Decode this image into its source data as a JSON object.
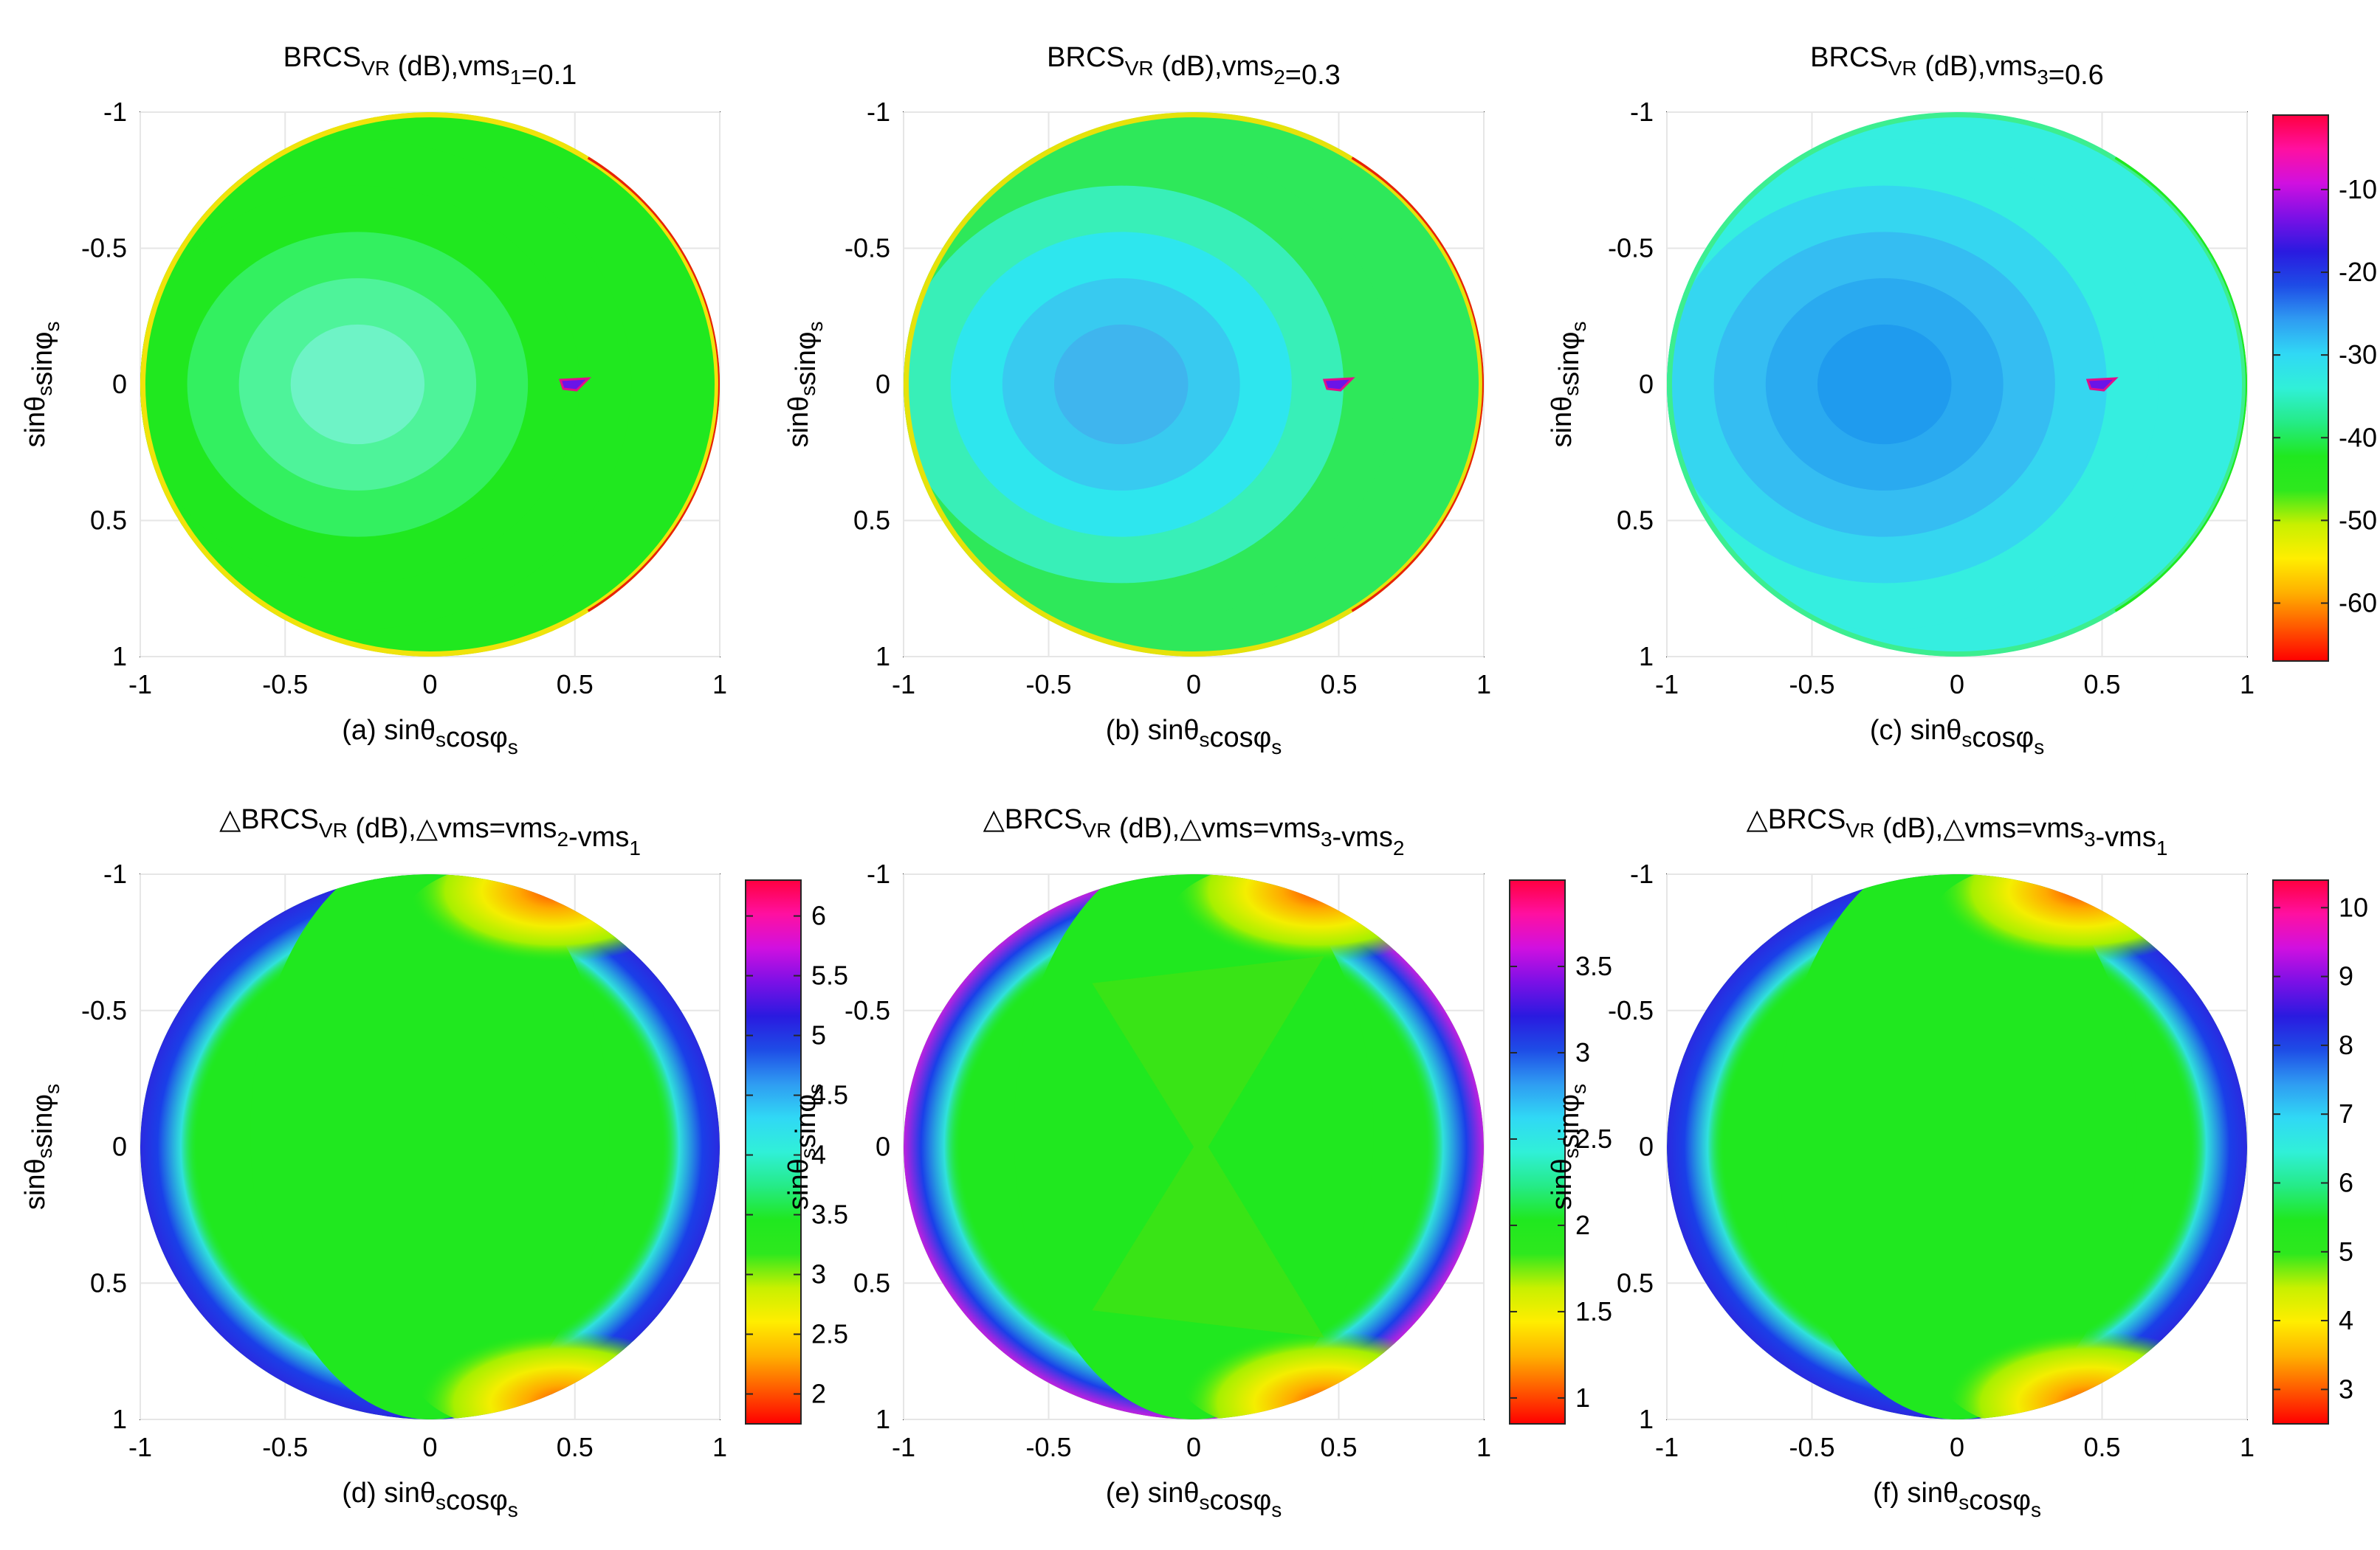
{
  "figure": {
    "axes_common": {
      "x_ticks": [
        "-1",
        "-0.5",
        "0",
        "0.5",
        "1"
      ],
      "y_ticks": [
        "-1",
        "-0.5",
        "0",
        "0.5",
        "1"
      ],
      "xlim": [
        -1,
        1
      ],
      "ylim": [
        -1,
        1
      ],
      "ylabel": "sinθ",
      "ylabel_sub1": "s",
      "ylabel_mid": "sinφ",
      "ylabel_sub2": "s",
      "xlabel_main": "sinθ",
      "xlabel_sub1": "s",
      "xlabel_mid": "cosφ",
      "xlabel_sub2": "s"
    }
  },
  "chart_data": [
    {
      "type": "heatmap",
      "id": "a",
      "title_pre": "BRCS",
      "title_sub": "VR",
      "title_mid": " (dB),vms",
      "title_sub2": "1",
      "title_post": "=0.1",
      "caption_letter": "(a)",
      "levels": [
        "#6ef3c6",
        "#4ef39a",
        "#33f060",
        "#20e81f",
        "#20e81f"
      ],
      "rim": [
        "#f0e30a",
        "#e8220a"
      ],
      "colorbar": null
    },
    {
      "type": "heatmap",
      "id": "b",
      "title_pre": "BRCS",
      "title_sub": "VR",
      "title_mid": " (dB),vms",
      "title_sub2": "2",
      "title_post": "=0.3",
      "caption_letter": "(b)",
      "levels": [
        "#3fb5ee",
        "#38caf0",
        "#2ee6ee",
        "#38efb8",
        "#2ee85a"
      ],
      "rim": [
        "#e6e20a",
        "#e8220a"
      ],
      "colorbar": null
    },
    {
      "type": "heatmap",
      "id": "c",
      "title_pre": "BRCS",
      "title_sub": "VR",
      "title_mid": " (dB),vms",
      "title_sub2": "3",
      "title_post": "=0.6",
      "caption_letter": "(c)",
      "levels": [
        "#1f9bee",
        "#2aaaf0",
        "#35bdf2",
        "#35d6f0",
        "#35eee0"
      ],
      "rim": [
        "#3cee90",
        "#20e81f"
      ],
      "colorbar": {
        "ticks": [
          "-10",
          "-20",
          "-30",
          "-40",
          "-50",
          "-60"
        ],
        "values": [
          -10,
          -20,
          -30,
          -40,
          -50,
          -60
        ],
        "range": [
          -67,
          -1
        ]
      }
    },
    {
      "type": "heatmap",
      "id": "d",
      "title_pre": "△BRCS",
      "title_sub": "VR",
      "title_mid": " (dB),△vms=vms",
      "title_sub2": "2",
      "title_post": "-vms",
      "title_sub3": "1",
      "caption_letter": "(d)",
      "levels": [
        "#20e81f"
      ],
      "rim": [
        "#32e0f0",
        "#1a3fe8",
        "#2a2ae0"
      ],
      "colorbar": {
        "ticks": [
          "6",
          "5.5",
          "5",
          "4.5",
          "4",
          "3.5",
          "3",
          "2.5",
          "2"
        ],
        "values": [
          6,
          5.5,
          5,
          4.5,
          4,
          3.5,
          3,
          2.5,
          2
        ],
        "range": [
          1.75,
          6.3
        ]
      }
    },
    {
      "type": "heatmap",
      "id": "e",
      "title_pre": "△BRCS",
      "title_sub": "VR",
      "title_mid": " (dB),△vms=vms",
      "title_sub2": "3",
      "title_post": "-vms",
      "title_sub3": "2",
      "caption_letter": "(e)",
      "levels": [
        "#20e81f"
      ],
      "rim": [
        "#32e0f0",
        "#1a3fe8",
        "#c020e0"
      ],
      "colorbar": {
        "ticks": [
          "3.5",
          "3",
          "2.5",
          "2",
          "1.5",
          "1"
        ],
        "values": [
          3.5,
          3,
          2.5,
          2,
          1.5,
          1
        ],
        "range": [
          0.85,
          4.0
        ]
      }
    },
    {
      "type": "heatmap",
      "id": "f",
      "title_pre": "△BRCS",
      "title_sub": "VR",
      "title_mid": " (dB),△vms=vms",
      "title_sub2": "3",
      "title_post": "-vms",
      "title_sub3": "1",
      "caption_letter": "(f)",
      "levels": [
        "#20e81f"
      ],
      "rim": [
        "#32e0f0",
        "#1a3fe8",
        "#2a2ae0"
      ],
      "colorbar": {
        "ticks": [
          "10",
          "9",
          "8",
          "7",
          "6",
          "5",
          "4",
          "3"
        ],
        "values": [
          10,
          9,
          8,
          7,
          6,
          5,
          4,
          3
        ],
        "range": [
          2.5,
          10.4
        ]
      }
    }
  ],
  "colormap": [
    "#ff0000",
    "#ff5a00",
    "#ffb000",
    "#ffee00",
    "#c8f000",
    "#2ee81e",
    "#20e81f",
    "#25eb88",
    "#30f0d8",
    "#30d8f5",
    "#2f9cf2",
    "#1e4ce6",
    "#2a1ae0",
    "#7c10e6",
    "#d010e0",
    "#ff10a0",
    "#ff0040"
  ]
}
